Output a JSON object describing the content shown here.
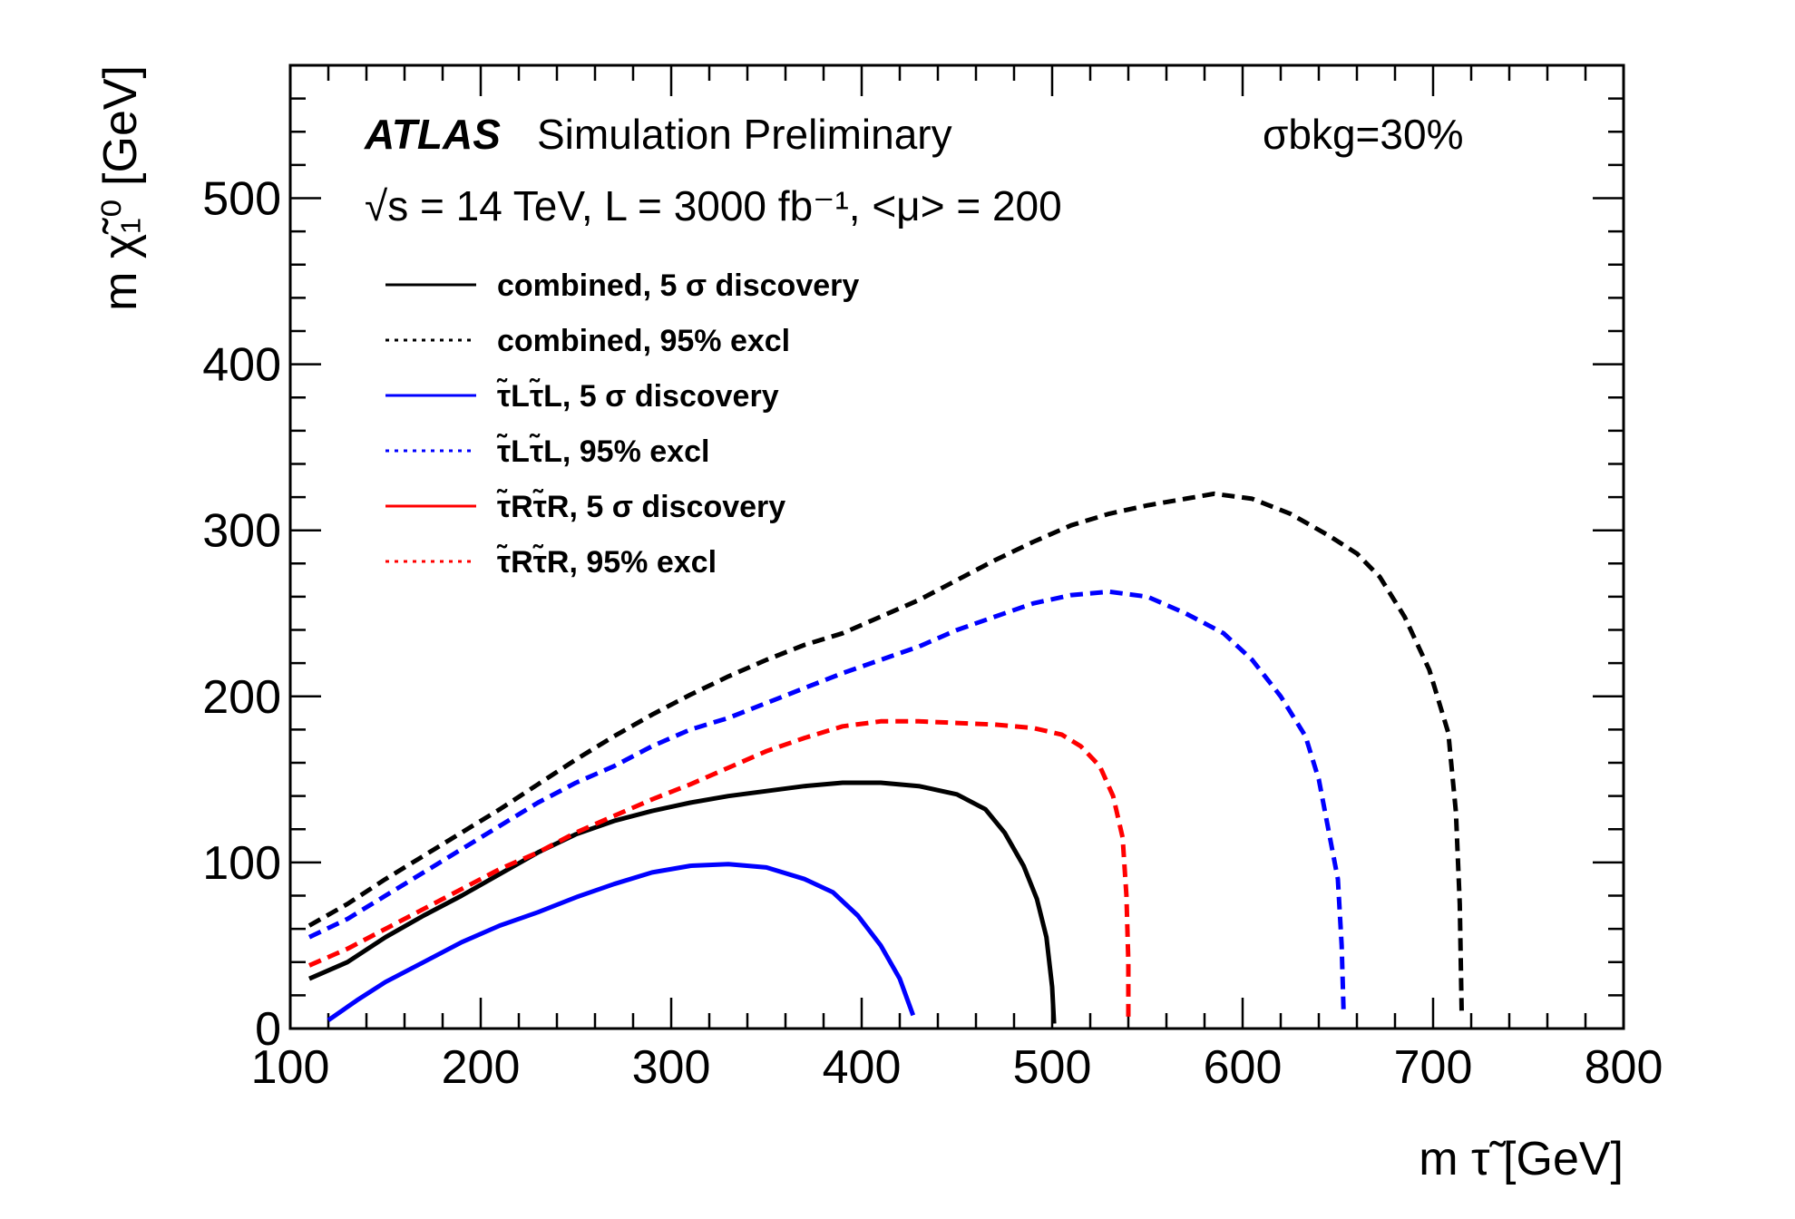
{
  "annotations": {
    "atlas": "ATLAS",
    "simulation": "Simulation Preliminary",
    "energy_line": "√s = 14 TeV, L = 3000 fb⁻¹, <μ> = 200",
    "sigma_bkg": "σbkg=30%"
  },
  "chart_data": {
    "type": "line",
    "xlabel": "m τ̃ [GeV]",
    "ylabel": "m χ̃₁⁰ [GeV]",
    "xlim": [
      100,
      800
    ],
    "ylim": [
      0,
      580
    ],
    "xticks": [
      100,
      200,
      300,
      400,
      500,
      600,
      700,
      800
    ],
    "yticks": [
      0,
      100,
      200,
      300,
      400,
      500
    ],
    "grid": false,
    "legend_position": "top-left",
    "series": [
      {
        "name": "combined, 5 σ discovery",
        "color": "#000000",
        "style": "solid",
        "x": [
          110,
          130,
          150,
          170,
          190,
          210,
          230,
          250,
          270,
          290,
          310,
          330,
          350,
          370,
          390,
          410,
          430,
          450,
          465,
          475,
          485,
          492,
          497,
          500,
          501
        ],
        "y": [
          30,
          40,
          55,
          68,
          80,
          93,
          106,
          117,
          125,
          131,
          136,
          140,
          143,
          146,
          148,
          148,
          146,
          141,
          132,
          118,
          98,
          78,
          55,
          25,
          3
        ]
      },
      {
        "name": "combined, 95% excl",
        "color": "#000000",
        "style": "dashed",
        "x": [
          110,
          130,
          150,
          170,
          190,
          210,
          230,
          250,
          270,
          290,
          310,
          330,
          350,
          370,
          390,
          410,
          430,
          450,
          470,
          490,
          510,
          530,
          550,
          570,
          585,
          605,
          625,
          645,
          660,
          672,
          685,
          698,
          708,
          712,
          714,
          715
        ],
        "y": [
          62,
          75,
          90,
          104,
          118,
          132,
          147,
          162,
          176,
          189,
          201,
          212,
          222,
          231,
          238,
          248,
          258,
          270,
          282,
          293,
          303,
          310,
          315,
          319,
          322,
          319,
          310,
          297,
          286,
          272,
          248,
          216,
          178,
          130,
          75,
          10
        ]
      },
      {
        "name": "τ̃Lτ̃L, 5 σ discovery",
        "color": "#0000ff",
        "style": "solid",
        "x": [
          120,
          135,
          150,
          170,
          190,
          210,
          230,
          250,
          270,
          290,
          310,
          330,
          350,
          370,
          385,
          398,
          410,
          420,
          427
        ],
        "y": [
          5,
          17,
          28,
          40,
          52,
          62,
          70,
          79,
          87,
          94,
          98,
          99,
          97,
          90,
          82,
          68,
          50,
          30,
          8
        ]
      },
      {
        "name": "τ̃Lτ̃L, 95% excl",
        "color": "#0000ff",
        "style": "dashed",
        "x": [
          110,
          130,
          150,
          170,
          190,
          210,
          230,
          250,
          270,
          290,
          310,
          330,
          350,
          370,
          390,
          410,
          430,
          450,
          470,
          490,
          510,
          530,
          550,
          570,
          590,
          605,
          620,
          633,
          640,
          645,
          650,
          652,
          653
        ],
        "y": [
          55,
          66,
          80,
          94,
          108,
          122,
          136,
          148,
          158,
          170,
          180,
          187,
          196,
          205,
          214,
          222,
          230,
          240,
          248,
          256,
          261,
          263,
          260,
          250,
          238,
          222,
          200,
          176,
          150,
          120,
          90,
          50,
          10
        ]
      },
      {
        "name": "τ̃Rτ̃R, 5 σ discovery",
        "color": "#ff0000",
        "style": "solid",
        "x": [],
        "y": []
      },
      {
        "name": "τ̃Rτ̃R, 95% excl",
        "color": "#ff0000",
        "style": "dashed",
        "x": [
          110,
          130,
          150,
          170,
          190,
          210,
          230,
          250,
          270,
          290,
          310,
          330,
          350,
          370,
          390,
          410,
          430,
          450,
          470,
          490,
          505,
          515,
          525,
          532,
          537,
          539,
          540,
          540
        ],
        "y": [
          38,
          48,
          60,
          72,
          84,
          96,
          106,
          118,
          128,
          138,
          147,
          157,
          167,
          175,
          182,
          185,
          185,
          184,
          183,
          181,
          177,
          170,
          158,
          140,
          115,
          80,
          40,
          5
        ]
      }
    ]
  }
}
